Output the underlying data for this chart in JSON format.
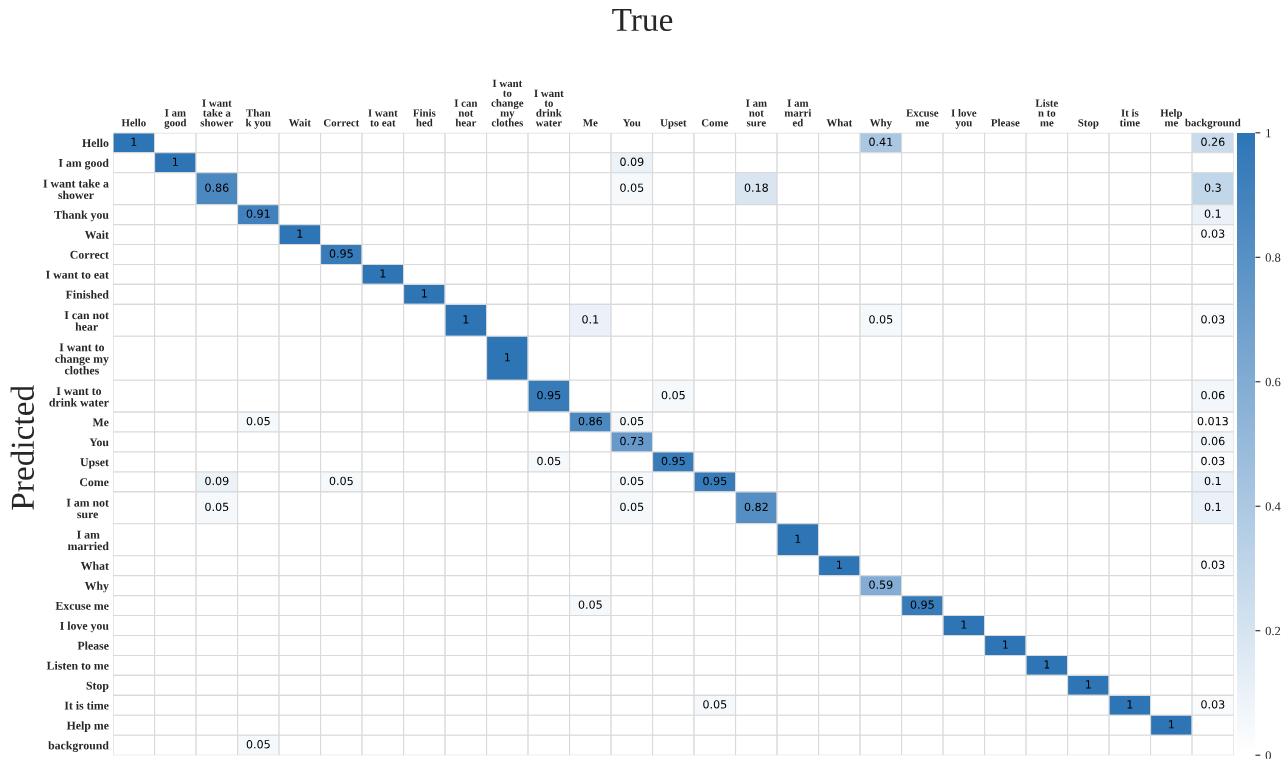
{
  "chart_data": {
    "type": "heatmap",
    "title": "True",
    "ylabel": "Predicted",
    "categories": [
      "Hello",
      "I am\ngood",
      "I want\ntake a\nshower",
      "Than\nk you",
      "Wait",
      "Correct",
      "I want\nto eat",
      "Finis\nhed",
      "I can\nnot\nhear",
      "I want\nto\nchange\nmy\nclothes",
      "I want\nto\ndrink\nwater",
      "Me",
      "You",
      "Upset",
      "Come",
      "I am\nnot\nsure",
      "I am\nmarri\ned",
      "What",
      "Why",
      "Excuse\nme",
      "I love\nyou",
      "Please",
      "Liste\nn to\nme",
      "Stop",
      "It is\ntime",
      "Help\nme",
      "background"
    ],
    "y_categories": [
      "Hello",
      "I am good",
      "I want take a\nshower",
      "Thank you",
      "Wait",
      "Correct",
      "I want to eat",
      "Finished",
      "I can not\nhear",
      "I want to\nchange my\nclothes",
      "I want to\ndrink water",
      "Me",
      "You",
      "Upset",
      "Come",
      "I am not\nsure",
      "I am\nmarried",
      "What",
      "Why",
      "Excuse me",
      "I love you",
      "Please",
      "Listen to me",
      "Stop",
      "It is time",
      "Help me",
      "background"
    ],
    "cells": [
      [
        1,
        null,
        null,
        null,
        null,
        null,
        null,
        null,
        null,
        null,
        null,
        null,
        null,
        null,
        null,
        null,
        null,
        null,
        0.41,
        null,
        null,
        null,
        null,
        null,
        null,
        null,
        0.26
      ],
      [
        null,
        1,
        null,
        null,
        null,
        null,
        null,
        null,
        null,
        null,
        null,
        null,
        0.09,
        null,
        null,
        null,
        null,
        null,
        null,
        null,
        null,
        null,
        null,
        null,
        null,
        null,
        null
      ],
      [
        null,
        null,
        0.86,
        null,
        null,
        null,
        null,
        null,
        null,
        null,
        null,
        null,
        0.05,
        null,
        null,
        0.18,
        null,
        null,
        null,
        null,
        null,
        null,
        null,
        null,
        null,
        null,
        0.3
      ],
      [
        null,
        null,
        null,
        0.91,
        null,
        null,
        null,
        null,
        null,
        null,
        null,
        null,
        null,
        null,
        null,
        null,
        null,
        null,
        null,
        null,
        null,
        null,
        null,
        null,
        null,
        null,
        0.1
      ],
      [
        null,
        null,
        null,
        null,
        1,
        null,
        null,
        null,
        null,
        null,
        null,
        null,
        null,
        null,
        null,
        null,
        null,
        null,
        null,
        null,
        null,
        null,
        null,
        null,
        null,
        null,
        0.03
      ],
      [
        null,
        null,
        null,
        null,
        null,
        0.95,
        null,
        null,
        null,
        null,
        null,
        null,
        null,
        null,
        null,
        null,
        null,
        null,
        null,
        null,
        null,
        null,
        null,
        null,
        null,
        null,
        null
      ],
      [
        null,
        null,
        null,
        null,
        null,
        null,
        1,
        null,
        null,
        null,
        null,
        null,
        null,
        null,
        null,
        null,
        null,
        null,
        null,
        null,
        null,
        null,
        null,
        null,
        null,
        null,
        null
      ],
      [
        null,
        null,
        null,
        null,
        null,
        null,
        null,
        1,
        null,
        null,
        null,
        null,
        null,
        null,
        null,
        null,
        null,
        null,
        null,
        null,
        null,
        null,
        null,
        null,
        null,
        null,
        null
      ],
      [
        null,
        null,
        null,
        null,
        null,
        null,
        null,
        null,
        1,
        null,
        null,
        0.1,
        null,
        null,
        null,
        null,
        null,
        null,
        0.05,
        null,
        null,
        null,
        null,
        null,
        null,
        null,
        0.03
      ],
      [
        null,
        null,
        null,
        null,
        null,
        null,
        null,
        null,
        null,
        1,
        null,
        null,
        null,
        null,
        null,
        null,
        null,
        null,
        null,
        null,
        null,
        null,
        null,
        null,
        null,
        null,
        null
      ],
      [
        null,
        null,
        null,
        null,
        null,
        null,
        null,
        null,
        null,
        null,
        0.95,
        null,
        null,
        0.05,
        null,
        null,
        null,
        null,
        null,
        null,
        null,
        null,
        null,
        null,
        null,
        null,
        0.06
      ],
      [
        null,
        null,
        null,
        0.05,
        null,
        null,
        null,
        null,
        null,
        null,
        null,
        0.86,
        0.05,
        null,
        null,
        null,
        null,
        null,
        null,
        null,
        null,
        null,
        null,
        null,
        null,
        null,
        0.013
      ],
      [
        null,
        null,
        null,
        null,
        null,
        null,
        null,
        null,
        null,
        null,
        null,
        null,
        0.73,
        null,
        null,
        null,
        null,
        null,
        null,
        null,
        null,
        null,
        null,
        null,
        null,
        null,
        0.06
      ],
      [
        null,
        null,
        null,
        null,
        null,
        null,
        null,
        null,
        null,
        null,
        0.05,
        null,
        null,
        0.95,
        null,
        null,
        null,
        null,
        null,
        null,
        null,
        null,
        null,
        null,
        null,
        null,
        0.03
      ],
      [
        null,
        null,
        0.09,
        null,
        null,
        0.05,
        null,
        null,
        null,
        null,
        null,
        null,
        0.05,
        null,
        0.95,
        null,
        null,
        null,
        null,
        null,
        null,
        null,
        null,
        null,
        null,
        null,
        0.1
      ],
      [
        null,
        null,
        0.05,
        null,
        null,
        null,
        null,
        null,
        null,
        null,
        null,
        null,
        0.05,
        null,
        null,
        0.82,
        null,
        null,
        null,
        null,
        null,
        null,
        null,
        null,
        null,
        null,
        0.1
      ],
      [
        null,
        null,
        null,
        null,
        null,
        null,
        null,
        null,
        null,
        null,
        null,
        null,
        null,
        null,
        null,
        null,
        1,
        null,
        null,
        null,
        null,
        null,
        null,
        null,
        null,
        null,
        null
      ],
      [
        null,
        null,
        null,
        null,
        null,
        null,
        null,
        null,
        null,
        null,
        null,
        null,
        null,
        null,
        null,
        null,
        null,
        1,
        null,
        null,
        null,
        null,
        null,
        null,
        null,
        null,
        0.03
      ],
      [
        null,
        null,
        null,
        null,
        null,
        null,
        null,
        null,
        null,
        null,
        null,
        null,
        null,
        null,
        null,
        null,
        null,
        null,
        0.59,
        null,
        null,
        null,
        null,
        null,
        null,
        null,
        null
      ],
      [
        null,
        null,
        null,
        null,
        null,
        null,
        null,
        null,
        null,
        null,
        null,
        0.05,
        null,
        null,
        null,
        null,
        null,
        null,
        null,
        0.95,
        null,
        null,
        null,
        null,
        null,
        null,
        null
      ],
      [
        null,
        null,
        null,
        null,
        null,
        null,
        null,
        null,
        null,
        null,
        null,
        null,
        null,
        null,
        null,
        null,
        null,
        null,
        null,
        null,
        1,
        null,
        null,
        null,
        null,
        null,
        null
      ],
      [
        null,
        null,
        null,
        null,
        null,
        null,
        null,
        null,
        null,
        null,
        null,
        null,
        null,
        null,
        null,
        null,
        null,
        null,
        null,
        null,
        null,
        1,
        null,
        null,
        null,
        null,
        null
      ],
      [
        null,
        null,
        null,
        null,
        null,
        null,
        null,
        null,
        null,
        null,
        null,
        null,
        null,
        null,
        null,
        null,
        null,
        null,
        null,
        null,
        null,
        null,
        1,
        null,
        null,
        null,
        null
      ],
      [
        null,
        null,
        null,
        null,
        null,
        null,
        null,
        null,
        null,
        null,
        null,
        null,
        null,
        null,
        null,
        null,
        null,
        null,
        null,
        null,
        null,
        null,
        null,
        1,
        null,
        null,
        null
      ],
      [
        null,
        null,
        null,
        null,
        null,
        null,
        null,
        null,
        null,
        null,
        null,
        null,
        null,
        null,
        0.05,
        null,
        null,
        null,
        null,
        null,
        null,
        null,
        null,
        null,
        1,
        null,
        0.03
      ],
      [
        null,
        null,
        null,
        null,
        null,
        null,
        null,
        null,
        null,
        null,
        null,
        null,
        null,
        null,
        null,
        null,
        null,
        null,
        null,
        null,
        null,
        null,
        null,
        null,
        null,
        1,
        null
      ],
      [
        null,
        null,
        null,
        0.05,
        null,
        null,
        null,
        null,
        null,
        null,
        null,
        null,
        null,
        null,
        null,
        null,
        null,
        null,
        null,
        null,
        null,
        null,
        null,
        null,
        null,
        null,
        null
      ]
    ],
    "clim": [
      0,
      1
    ],
    "cticks": [
      0,
      0.2,
      0.4,
      0.6,
      0.8,
      1
    ],
    "color": "#2e75b6",
    "data_labels": true
  }
}
